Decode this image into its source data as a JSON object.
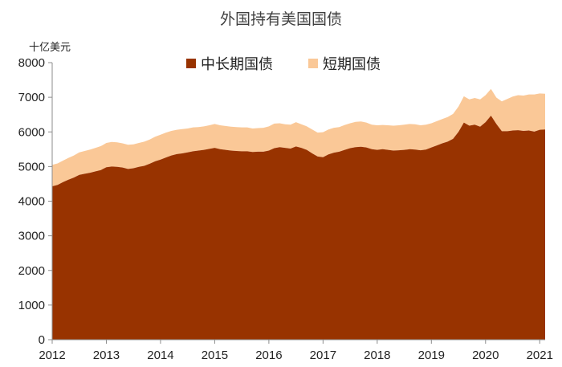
{
  "chart_data": {
    "type": "area",
    "title": "外国持有美国国债",
    "unit_label": "十亿美元",
    "ylim": [
      0,
      8000
    ],
    "yticks": [
      0,
      1000,
      2000,
      3000,
      4000,
      5000,
      6000,
      7000,
      8000
    ],
    "xlim": [
      2012.0,
      2021.1
    ],
    "xticks": [
      2012,
      2013,
      2014,
      2015,
      2016,
      2017,
      2018,
      2019,
      2020,
      2021
    ],
    "grid": false,
    "stacked": true,
    "legend_position": "top-center",
    "colors": {
      "long_term": "#983300",
      "short_term": "#fac897"
    },
    "x": [
      2012.0,
      2012.1,
      2012.2,
      2012.3,
      2012.4,
      2012.5,
      2012.6,
      2012.7,
      2012.8,
      2012.9,
      2013.0,
      2013.1,
      2013.2,
      2013.3,
      2013.4,
      2013.5,
      2013.6,
      2013.7,
      2013.8,
      2013.9,
      2014.0,
      2014.1,
      2014.2,
      2014.3,
      2014.4,
      2014.5,
      2014.6,
      2014.7,
      2014.8,
      2014.9,
      2015.0,
      2015.1,
      2015.2,
      2015.3,
      2015.4,
      2015.5,
      2015.6,
      2015.7,
      2015.8,
      2015.9,
      2016.0,
      2016.1,
      2016.2,
      2016.3,
      2016.4,
      2016.5,
      2016.6,
      2016.7,
      2016.8,
      2016.9,
      2017.0,
      2017.1,
      2017.2,
      2017.3,
      2017.4,
      2017.5,
      2017.6,
      2017.7,
      2017.8,
      2017.9,
      2018.0,
      2018.1,
      2018.2,
      2018.3,
      2018.4,
      2018.5,
      2018.6,
      2018.7,
      2018.8,
      2018.9,
      2019.0,
      2019.1,
      2019.2,
      2019.3,
      2019.4,
      2019.5,
      2019.6,
      2019.7,
      2019.8,
      2019.9,
      2020.0,
      2020.1,
      2020.2,
      2020.3,
      2020.4,
      2020.5,
      2020.6,
      2020.7,
      2020.8,
      2020.9,
      2021.0,
      2021.1
    ],
    "series": [
      {
        "name": "中长期国债",
        "key": "long_term",
        "values": [
          4430,
          4470,
          4550,
          4620,
          4680,
          4760,
          4790,
          4820,
          4860,
          4900,
          4980,
          5000,
          4990,
          4970,
          4930,
          4950,
          4990,
          5020,
          5080,
          5150,
          5200,
          5260,
          5320,
          5360,
          5380,
          5410,
          5440,
          5460,
          5480,
          5510,
          5540,
          5500,
          5480,
          5460,
          5450,
          5440,
          5440,
          5420,
          5430,
          5430,
          5460,
          5530,
          5560,
          5540,
          5520,
          5580,
          5540,
          5480,
          5380,
          5290,
          5270,
          5350,
          5400,
          5430,
          5480,
          5530,
          5560,
          5570,
          5550,
          5500,
          5480,
          5500,
          5480,
          5460,
          5470,
          5480,
          5500,
          5490,
          5470,
          5490,
          5550,
          5610,
          5670,
          5720,
          5800,
          6000,
          6270,
          6180,
          6210,
          6150,
          6280,
          6470,
          6230,
          6020,
          6020,
          6040,
          6050,
          6030,
          6040,
          6010,
          6060,
          6070
        ]
      },
      {
        "name": "短期国债",
        "key": "short_term",
        "values": [
          620,
          620,
          620,
          630,
          640,
          650,
          660,
          670,
          680,
          690,
          700,
          710,
          710,
          700,
          700,
          690,
          690,
          700,
          700,
          710,
          720,
          720,
          710,
          700,
          700,
          690,
          690,
          680,
          680,
          680,
          690,
          690,
          690,
          690,
          690,
          690,
          690,
          680,
          680,
          690,
          700,
          710,
          690,
          680,
          690,
          700,
          680,
          680,
          690,
          690,
          720,
          720,
          720,
          710,
          720,
          720,
          730,
          730,
          720,
          710,
          710,
          700,
          710,
          720,
          720,
          730,
          730,
          730,
          720,
          720,
          700,
          700,
          700,
          710,
          720,
          730,
          760,
          760,
          770,
          790,
          780,
          770,
          760,
          860,
          930,
          980,
          1010,
          1020,
          1040,
          1070,
          1050,
          1030
        ]
      }
    ]
  }
}
